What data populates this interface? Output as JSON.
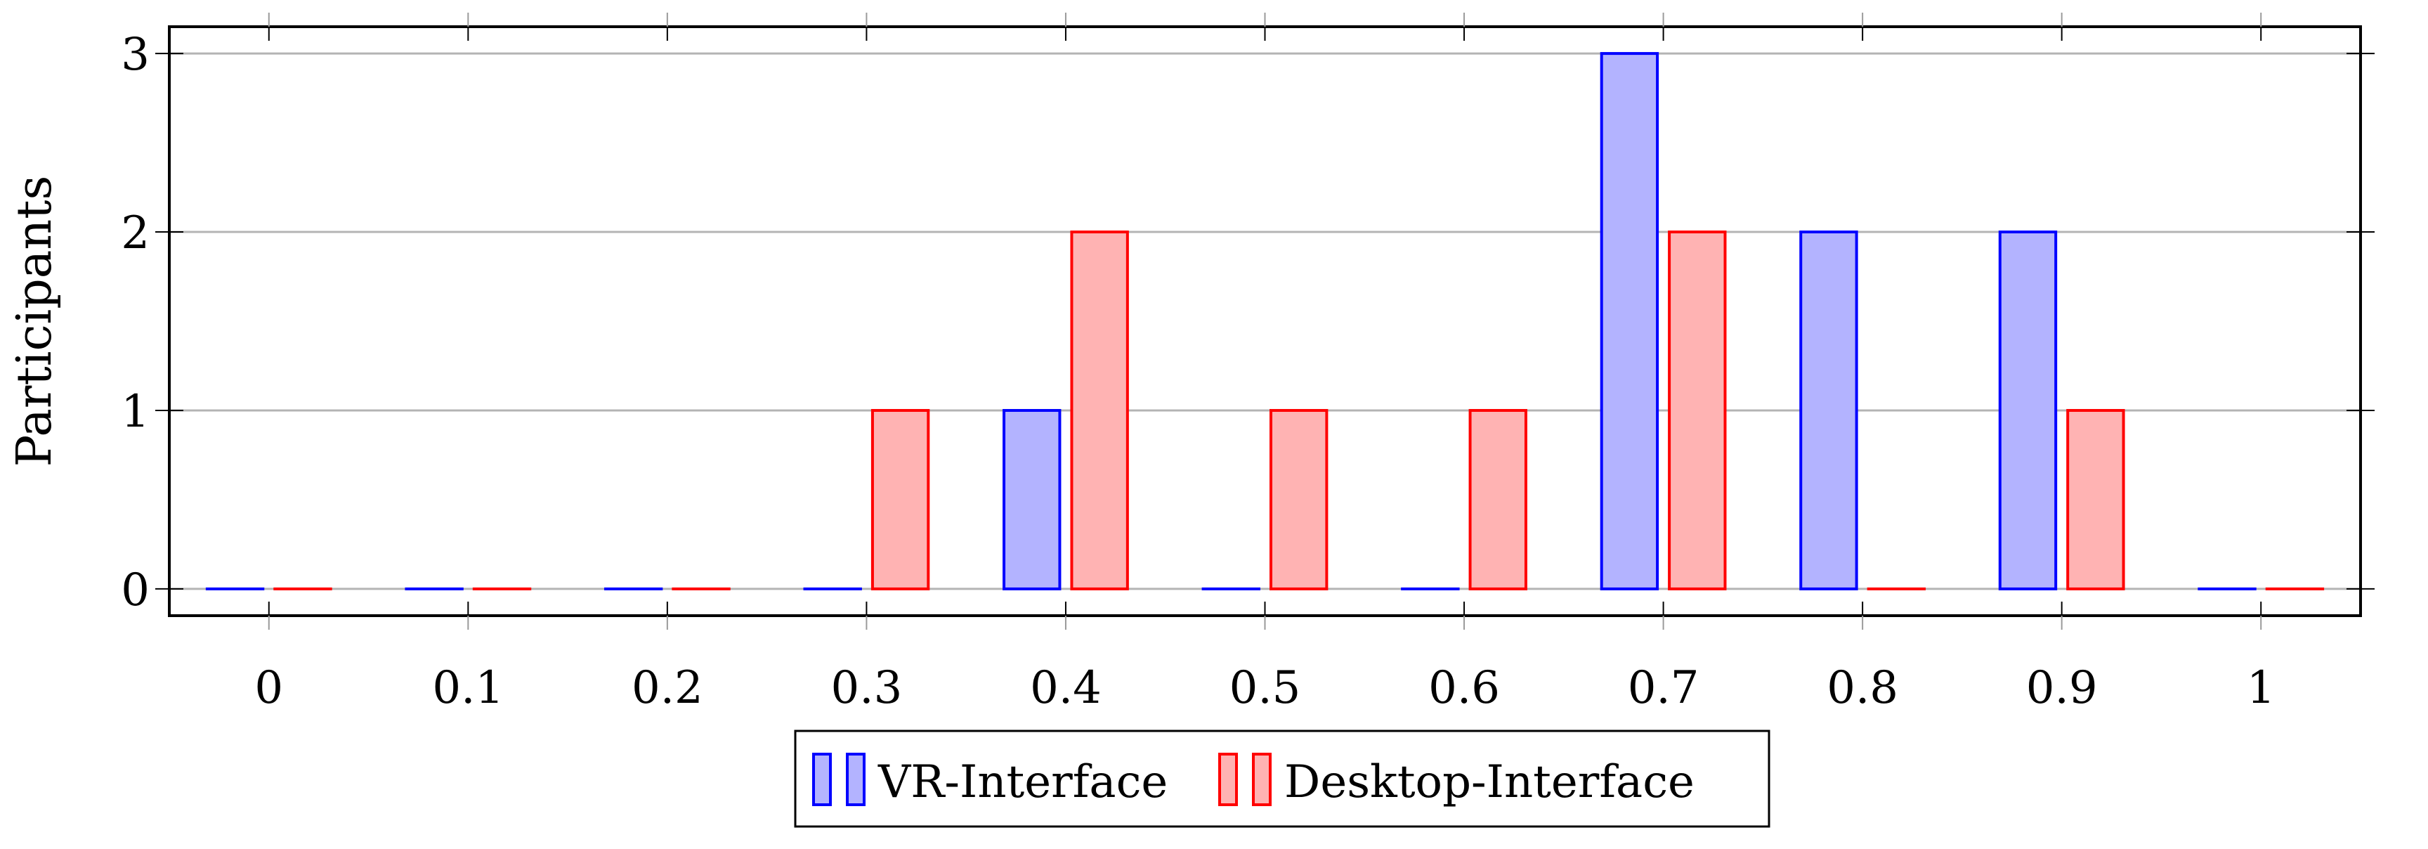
{
  "chart_data": {
    "type": "bar",
    "categories": [
      "0",
      "0.1",
      "0.2",
      "0.3",
      "0.4",
      "0.5",
      "0.6",
      "0.7",
      "0.8",
      "0.9",
      "1"
    ],
    "x": [
      0,
      0.1,
      0.2,
      0.3,
      0.4,
      0.5,
      0.6,
      0.7,
      0.8,
      0.9,
      1
    ],
    "series": [
      {
        "name": "VR-Interface",
        "values": [
          0,
          0,
          0,
          0,
          1,
          0,
          0,
          3,
          2,
          2,
          0
        ],
        "fill": "#b3b3ff",
        "stroke": "#0000ff"
      },
      {
        "name": "Desktop-Interface",
        "values": [
          0,
          0,
          0,
          1,
          2,
          1,
          1,
          2,
          0,
          1,
          0
        ],
        "fill": "#ffb3b3",
        "stroke": "#ff0000"
      }
    ],
    "title": "",
    "xlabel": "",
    "ylabel": "Participants",
    "ylim": [
      -0.15,
      3.15
    ],
    "xlim": [
      -0.05,
      1.05
    ],
    "yticks": [
      0,
      1,
      2,
      3
    ],
    "grid": "y-major",
    "legend_position": "bottom-center"
  }
}
